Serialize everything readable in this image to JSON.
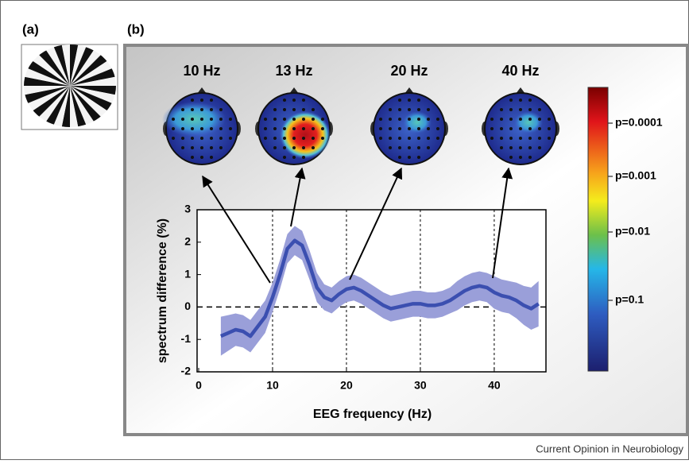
{
  "panel_labels": [
    "(a)",
    "(b)"
  ],
  "footer": "Current Opinion in Neurobiology",
  "chart_data": {
    "type": "line",
    "xlabel": "EEG frequency (Hz)",
    "ylabel": "spectrum difference (%)",
    "x": [
      3,
      4,
      5,
      6,
      7,
      8,
      9,
      10,
      11,
      12,
      13,
      14,
      15,
      16,
      17,
      18,
      19,
      20,
      21,
      22,
      23,
      24,
      25,
      26,
      27,
      28,
      29,
      30,
      31,
      32,
      33,
      34,
      35,
      36,
      37,
      38,
      39,
      40,
      41,
      42,
      43,
      44,
      45,
      46
    ],
    "series": [
      {
        "color": "#3b4fb0",
        "band_color": "#9a9fd9",
        "values": [
          -0.9,
          -0.8,
          -0.7,
          -0.75,
          -0.9,
          -0.6,
          -0.3,
          0.3,
          1.0,
          1.8,
          2.05,
          1.9,
          1.3,
          0.6,
          0.3,
          0.2,
          0.4,
          0.55,
          0.6,
          0.5,
          0.35,
          0.2,
          0.05,
          -0.05,
          0.0,
          0.05,
          0.1,
          0.1,
          0.05,
          0.05,
          0.1,
          0.2,
          0.35,
          0.5,
          0.6,
          0.65,
          0.6,
          0.45,
          0.35,
          0.3,
          0.2,
          0.05,
          -0.05,
          0.1
        ],
        "errors": [
          0.6,
          0.55,
          0.5,
          0.5,
          0.5,
          0.5,
          0.5,
          0.45,
          0.45,
          0.45,
          0.45,
          0.45,
          0.45,
          0.45,
          0.4,
          0.4,
          0.4,
          0.4,
          0.4,
          0.4,
          0.4,
          0.4,
          0.4,
          0.4,
          0.4,
          0.4,
          0.4,
          0.4,
          0.4,
          0.4,
          0.4,
          0.4,
          0.45,
          0.45,
          0.45,
          0.45,
          0.45,
          0.5,
          0.5,
          0.5,
          0.55,
          0.6,
          0.65,
          0.7
        ]
      }
    ],
    "xlim": [
      0,
      47
    ],
    "ylim": [
      -2,
      3
    ],
    "xticks": [
      0,
      10,
      20,
      30,
      40
    ],
    "yticks": [
      -2,
      -1,
      0,
      1,
      2,
      3
    ],
    "grid": "x",
    "zero_line": true,
    "annotations": [
      "10 Hz",
      "13 Hz",
      "20 Hz",
      "40 Hz"
    ],
    "colorbar": {
      "labels": [
        "p=0.0001",
        "p=0.001",
        "p=0.01",
        "p=0.1"
      ]
    }
  }
}
